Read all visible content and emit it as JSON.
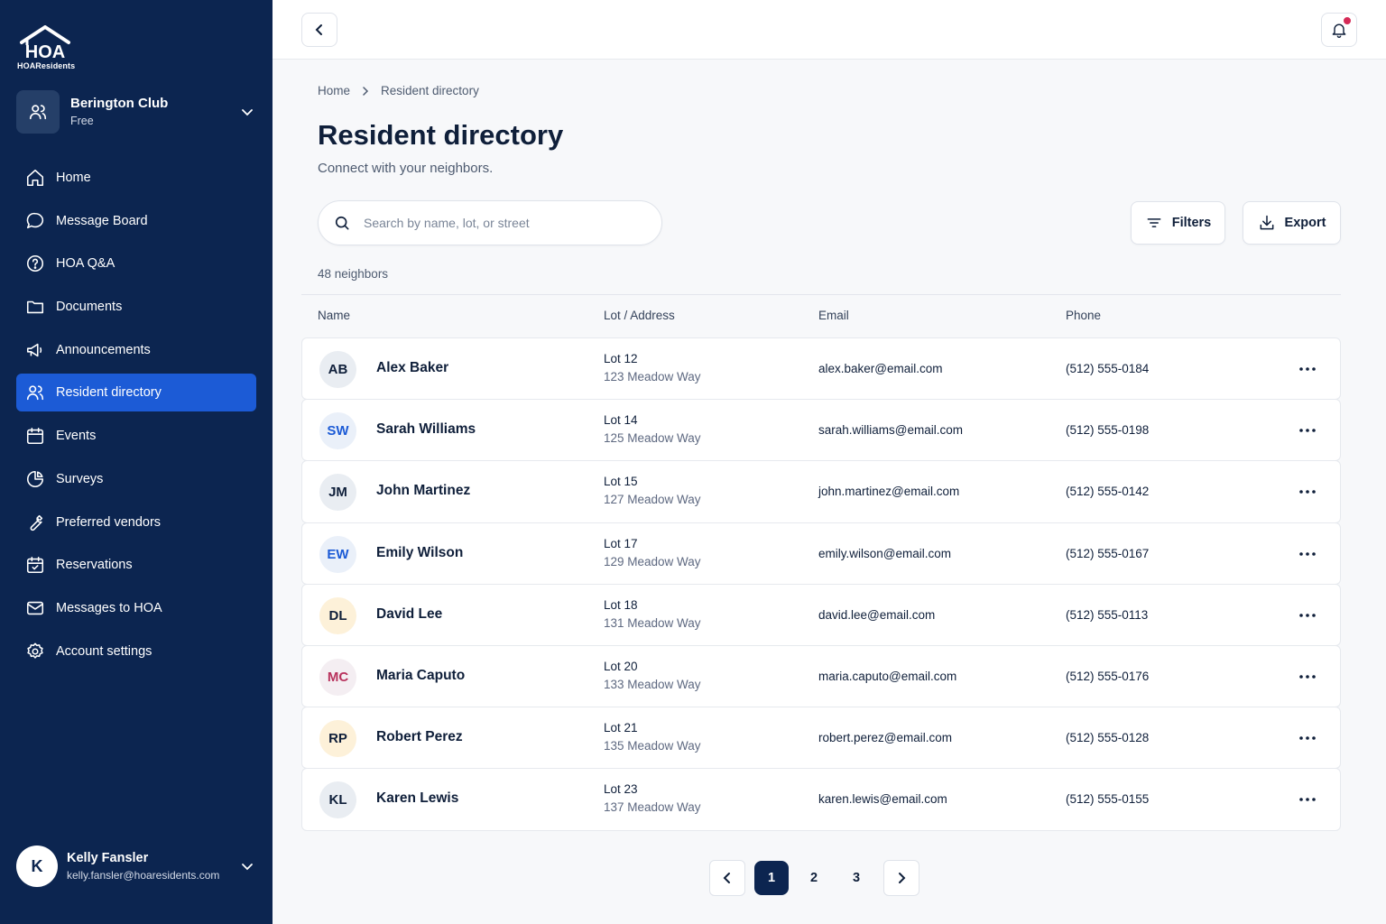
{
  "brand": {
    "logo_mark": "HOA",
    "name": "HOAResidents"
  },
  "org": {
    "name": "Berington Club",
    "plan": "Free"
  },
  "nav": [
    {
      "label": "Home",
      "icon": "home-icon"
    },
    {
      "label": "Message Board",
      "icon": "chat-icon"
    },
    {
      "label": "HOA Q&A",
      "icon": "question-icon"
    },
    {
      "label": "Documents",
      "icon": "folder-icon"
    },
    {
      "label": "Announcements",
      "icon": "megaphone-icon"
    },
    {
      "label": "Resident directory",
      "icon": "users-icon",
      "active": true
    },
    {
      "label": "Events",
      "icon": "calendar-icon"
    },
    {
      "label": "Surveys",
      "icon": "pie-chart-icon"
    },
    {
      "label": "Preferred vendors",
      "icon": "wrench-icon"
    },
    {
      "label": "Reservations",
      "icon": "calendar-check-icon"
    },
    {
      "label": "Messages to HOA",
      "icon": "mail-icon"
    },
    {
      "label": "Account settings",
      "icon": "gear-icon"
    }
  ],
  "user": {
    "initial": "K",
    "name": "Kelly Fansler",
    "email": "kelly.fansler@hoaresidents.com"
  },
  "breadcrumb": {
    "home": "Home",
    "current": "Resident directory"
  },
  "page": {
    "title": "Resident directory",
    "subtitle": "Connect with your neighbors."
  },
  "search": {
    "placeholder": "Search by name, lot, or street",
    "value": ""
  },
  "toolbar": {
    "filters": "Filters",
    "export": "Export"
  },
  "count_label": "48 neighbors",
  "columns": {
    "name": "Name",
    "lot": "Lot / Address",
    "email": "Email",
    "phone": "Phone"
  },
  "residents": [
    {
      "initials": "AB",
      "name": "Alex Baker",
      "lot": "Lot 12",
      "address": "123 Meadow Way",
      "email": "alex.baker@email.com",
      "phone": "(512) 555-0184",
      "avatar_bg": "#e9edf2",
      "avatar_fg": "#0f1f3a"
    },
    {
      "initials": "SW",
      "name": "Sarah Williams",
      "lot": "Lot 14",
      "address": "125 Meadow Way",
      "email": "sarah.williams@email.com",
      "phone": "(512) 555-0198",
      "avatar_bg": "#eaf0f9",
      "avatar_fg": "#1c5bd6"
    },
    {
      "initials": "JM",
      "name": "John Martinez",
      "lot": "Lot 15",
      "address": "127 Meadow Way",
      "email": "john.martinez@email.com",
      "phone": "(512) 555-0142",
      "avatar_bg": "#e9edf2",
      "avatar_fg": "#0f1f3a"
    },
    {
      "initials": "EW",
      "name": "Emily Wilson",
      "lot": "Lot 17",
      "address": "129 Meadow Way",
      "email": "emily.wilson@email.com",
      "phone": "(512) 555-0167",
      "avatar_bg": "#eaf0f9",
      "avatar_fg": "#1c5bd6"
    },
    {
      "initials": "DL",
      "name": "David Lee",
      "lot": "Lot 18",
      "address": "131 Meadow Way",
      "email": "david.lee@email.com",
      "phone": "(512) 555-0113",
      "avatar_bg": "#fdf1d9",
      "avatar_fg": "#0f1f3a"
    },
    {
      "initials": "MC",
      "name": "Maria Caputo",
      "lot": "Lot 20",
      "address": "133 Meadow Way",
      "email": "maria.caputo@email.com",
      "phone": "(512) 555-0176",
      "avatar_bg": "#f4eef2",
      "avatar_fg": "#b8325d"
    },
    {
      "initials": "RP",
      "name": "Robert Perez",
      "lot": "Lot 21",
      "address": "135 Meadow Way",
      "email": "robert.perez@email.com",
      "phone": "(512) 555-0128",
      "avatar_bg": "#fdf1d9",
      "avatar_fg": "#0f1f3a"
    },
    {
      "initials": "KL",
      "name": "Karen Lewis",
      "lot": "Lot 23",
      "address": "137 Meadow Way",
      "email": "karen.lewis@email.com",
      "phone": "(512) 555-0155",
      "avatar_bg": "#e9edf2",
      "avatar_fg": "#0f1f3a"
    }
  ],
  "pagination": {
    "pages": [
      "1",
      "2",
      "3"
    ],
    "current": "1"
  },
  "colors": {
    "sidebar": "#0c2550",
    "accent": "#1c5bd6",
    "notification": "#d52a57"
  }
}
